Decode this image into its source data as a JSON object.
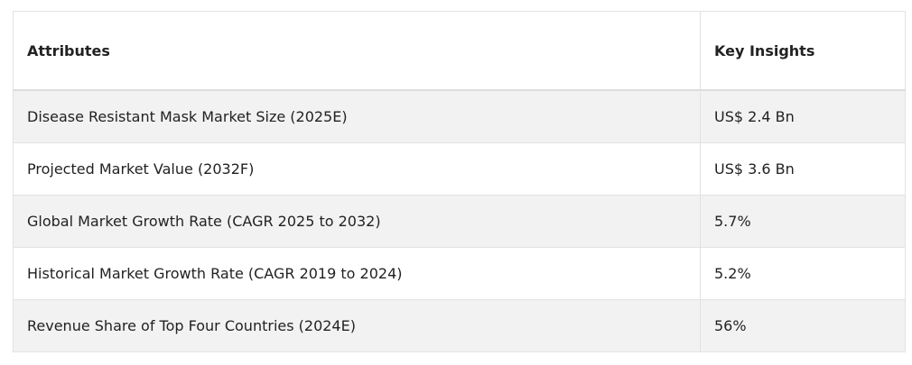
{
  "table": {
    "header": [
      "Attributes",
      "Key Insights"
    ],
    "rows": [
      [
        "Disease Resistant Mask Market Size (2025E)",
        "US$ 2.4 Bn"
      ],
      [
        "Projected Market Value (2032F)",
        "US$ 3.6 Bn"
      ],
      [
        "Global Market Growth Rate (CAGR 2025 to 2032)",
        "5.7%"
      ],
      [
        "Historical Market Growth Rate (CAGR 2019 to 2024)",
        "5.2%"
      ],
      [
        "Revenue Share of Top Four Countries (2024E)",
        "56%"
      ]
    ]
  }
}
